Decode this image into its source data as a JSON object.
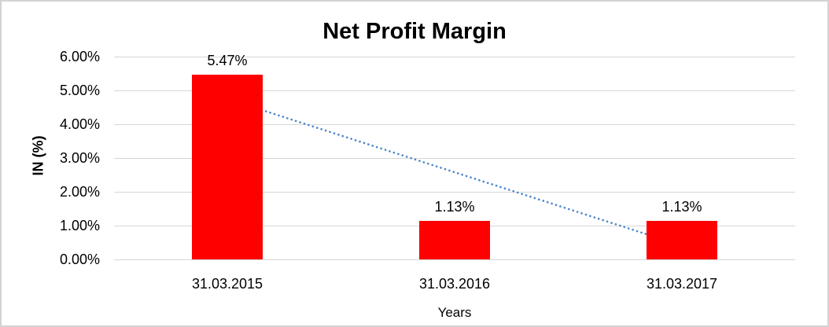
{
  "chart_data": {
    "type": "bar",
    "title": "Net Profit Margin",
    "categories": [
      "31.03.2015",
      "31.03.2016",
      "31.03.2017"
    ],
    "values": [
      5.47,
      1.13,
      1.13
    ],
    "value_labels": [
      "5.47%",
      "1.13%",
      "1.13%"
    ],
    "xlabel": "Years",
    "ylabel": "IN (%)",
    "ylim": [
      0,
      6
    ],
    "yticks": [
      0,
      1,
      2,
      3,
      4,
      5,
      6
    ],
    "ytick_labels": [
      "0.00%",
      "1.00%",
      "2.00%",
      "3.00%",
      "4.00%",
      "5.00%",
      "6.00%"
    ],
    "grid": true,
    "legend": "none",
    "trendline": {
      "type": "linear",
      "style": "dotted",
      "start": {
        "category_index": 0,
        "value": 4.75
      },
      "end": {
        "category_index": 2,
        "value": 0.41
      }
    },
    "colors": {
      "bar": "#ff0000",
      "trendline": "#4a86c8",
      "gridline": "#d6d6d6",
      "text": "#000000",
      "frame_border": "#d3d3d3",
      "background": "#ffffff"
    }
  }
}
